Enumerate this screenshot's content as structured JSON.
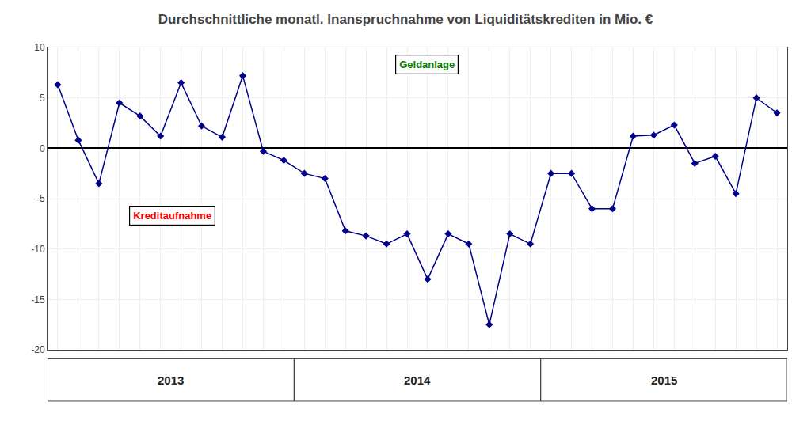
{
  "chart_data": {
    "type": "line",
    "title": "Durchschnittliche monatl. Inanspruchnahme von Liquiditätskrediten in Mio. €",
    "categories": [
      "2013",
      null,
      null,
      null,
      null,
      null,
      null,
      null,
      null,
      null,
      null,
      null,
      "2014",
      null,
      null,
      null,
      null,
      null,
      null,
      null,
      null,
      null,
      null,
      null,
      "2015",
      null,
      null,
      null,
      null,
      null,
      null,
      null,
      null,
      null,
      null,
      null
    ],
    "values": [
      6.3,
      0.8,
      -3.5,
      4.5,
      3.2,
      1.2,
      6.5,
      2.2,
      1.1,
      7.2,
      -0.3,
      -1.2,
      -2.5,
      -3.0,
      -8.2,
      -8.7,
      -9.5,
      -8.5,
      -13.0,
      -8.5,
      -9.5,
      -17.5,
      -8.5,
      -9.5,
      -2.5,
      -2.5,
      -6.0,
      -6.0,
      1.2,
      1.3,
      2.3,
      -1.5,
      -0.8,
      -4.5,
      5.0,
      3.5
    ],
    "color": "#00008B",
    "marker": "diamond",
    "ylim": [
      -20,
      10
    ],
    "yticks": [
      -20,
      -15,
      -10,
      -5,
      0,
      5,
      10
    ],
    "grid": true,
    "annotations": [
      {
        "text": "Kreditaufnahme",
        "color": "red"
      },
      {
        "text": "Geldanlage",
        "color": "green"
      }
    ]
  }
}
